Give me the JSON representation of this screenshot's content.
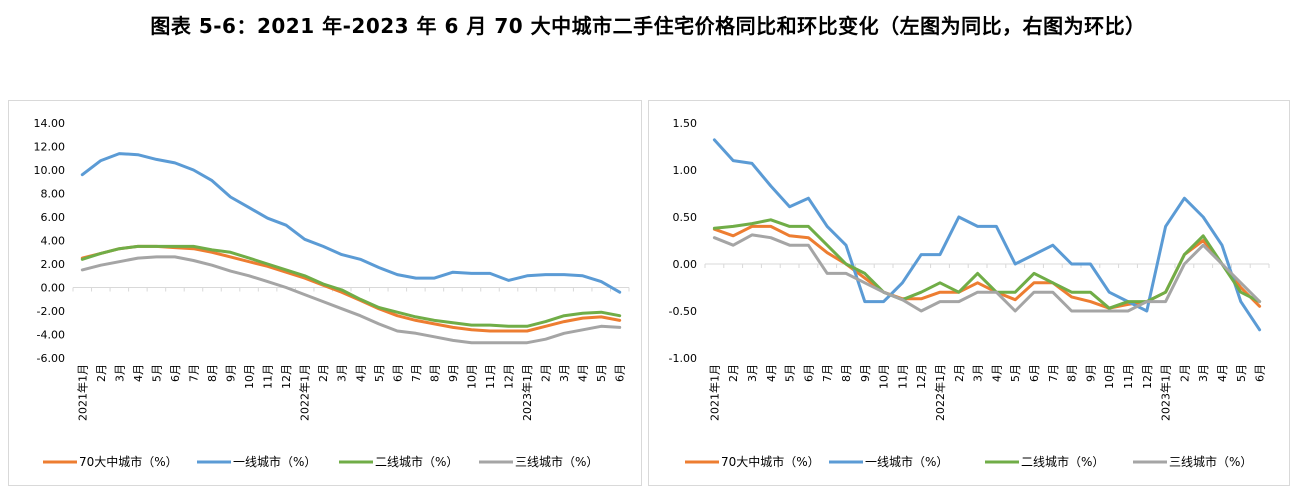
{
  "page_title": "图表 5-6：2021 年-2023 年 6 月 70 大中城市二手住宅价格同比和环比变化（左图为同比，右图为环比）",
  "colors": {
    "70大中城市": "#ED7D31",
    "一线城市": "#5B9BD5",
    "二线城市": "#70AD47",
    "三线城市": "#A5A5A5",
    "grid": "#d9d9d9"
  },
  "chart_data": [
    {
      "type": "line",
      "title": "",
      "categories": [
        "2021年1月",
        "2月",
        "3月",
        "4月",
        "5月",
        "6月",
        "7月",
        "8月",
        "9月",
        "10月",
        "11月",
        "12月",
        "2022年1月",
        "2月",
        "3月",
        "4月",
        "5月",
        "6月",
        "7月",
        "8月",
        "9月",
        "10月",
        "11月",
        "12月",
        "2023年1月",
        "2月",
        "3月",
        "4月",
        "5月",
        "6月"
      ],
      "ylim": [
        -6,
        14
      ],
      "yticks": [
        "14.00",
        "12.00",
        "10.00",
        "8.00",
        "6.00",
        "4.00",
        "2.00",
        "0.00",
        "-2.00",
        "-4.00",
        "-6.00"
      ],
      "legend_position": "bottom",
      "grid": false,
      "series": [
        {
          "name": "70大中城市（%）",
          "values": [
            2.5,
            2.9,
            3.3,
            3.5,
            3.5,
            3.4,
            3.3,
            3.0,
            2.6,
            2.2,
            1.8,
            1.3,
            0.8,
            0.2,
            -0.4,
            -1.1,
            -1.8,
            -2.4,
            -2.8,
            -3.1,
            -3.4,
            -3.6,
            -3.7,
            -3.7,
            -3.7,
            -3.3,
            -2.9,
            -2.6,
            -2.5,
            -2.8
          ]
        },
        {
          "name": "一线城市（%）",
          "values": [
            9.6,
            10.8,
            11.4,
            11.3,
            10.9,
            10.6,
            10.0,
            9.1,
            7.7,
            6.8,
            5.9,
            5.3,
            4.1,
            3.5,
            2.8,
            2.4,
            1.7,
            1.1,
            0.8,
            0.8,
            1.3,
            1.2,
            1.2,
            0.6,
            1.0,
            1.1,
            1.1,
            1.0,
            0.5,
            -0.4
          ]
        },
        {
          "name": "二线城市（%）",
          "values": [
            2.4,
            2.9,
            3.3,
            3.5,
            3.5,
            3.5,
            3.5,
            3.2,
            3.0,
            2.5,
            2.0,
            1.5,
            1.0,
            0.3,
            -0.2,
            -1.0,
            -1.7,
            -2.1,
            -2.5,
            -2.8,
            -3.0,
            -3.2,
            -3.2,
            -3.3,
            -3.3,
            -2.9,
            -2.4,
            -2.2,
            -2.1,
            -2.4
          ]
        },
        {
          "name": "三线城市（%）",
          "values": [
            1.5,
            1.9,
            2.2,
            2.5,
            2.6,
            2.6,
            2.3,
            1.9,
            1.4,
            1.0,
            0.5,
            0.0,
            -0.6,
            -1.2,
            -1.8,
            -2.4,
            -3.1,
            -3.7,
            -3.9,
            -4.2,
            -4.5,
            -4.7,
            -4.7,
            -4.7,
            -4.7,
            -4.4,
            -3.9,
            -3.6,
            -3.3,
            -3.4
          ]
        }
      ]
    },
    {
      "type": "line",
      "title": "",
      "categories": [
        "2021年1月",
        "2月",
        "3月",
        "4月",
        "5月",
        "6月",
        "7月",
        "8月",
        "9月",
        "10月",
        "11月",
        "12月",
        "2022年1月",
        "2月",
        "3月",
        "4月",
        "5月",
        "6月",
        "7月",
        "8月",
        "9月",
        "10月",
        "11月",
        "12月",
        "2023年1月",
        "2月",
        "3月",
        "4月",
        "5月",
        "6月"
      ],
      "ylim": [
        -1,
        1.5
      ],
      "yticks": [
        "1.50",
        "1.00",
        "0.50",
        "0.00",
        "-0.50",
        "-1.00"
      ],
      "legend_position": "bottom",
      "grid": false,
      "series": [
        {
          "name": "70大中城市（%）",
          "values": [
            0.37,
            0.3,
            0.4,
            0.4,
            0.3,
            0.28,
            0.12,
            0.0,
            -0.15,
            -0.3,
            -0.37,
            -0.37,
            -0.3,
            -0.3,
            -0.2,
            -0.3,
            -0.38,
            -0.2,
            -0.2,
            -0.35,
            -0.4,
            -0.47,
            -0.43,
            -0.4,
            -0.3,
            0.1,
            0.25,
            0.0,
            -0.25,
            -0.45
          ]
        },
        {
          "name": "一线城市（%）",
          "values": [
            1.32,
            1.1,
            1.07,
            0.83,
            0.61,
            0.7,
            0.4,
            0.2,
            -0.4,
            -0.4,
            -0.2,
            0.1,
            0.1,
            0.5,
            0.4,
            0.4,
            0.0,
            0.1,
            0.2,
            0.0,
            0.0,
            -0.3,
            -0.4,
            -0.5,
            0.4,
            0.7,
            0.5,
            0.2,
            -0.4,
            -0.7
          ]
        },
        {
          "name": "二线城市（%）",
          "values": [
            0.38,
            0.4,
            0.43,
            0.47,
            0.4,
            0.4,
            0.2,
            0.0,
            -0.1,
            -0.3,
            -0.38,
            -0.3,
            -0.2,
            -0.3,
            -0.1,
            -0.3,
            -0.3,
            -0.1,
            -0.2,
            -0.3,
            -0.3,
            -0.47,
            -0.4,
            -0.4,
            -0.3,
            0.1,
            0.3,
            0.0,
            -0.3,
            -0.4
          ]
        },
        {
          "name": "三线城市（%）",
          "values": [
            0.28,
            0.2,
            0.31,
            0.28,
            0.2,
            0.2,
            -0.1,
            -0.1,
            -0.2,
            -0.3,
            -0.38,
            -0.5,
            -0.4,
            -0.4,
            -0.3,
            -0.3,
            -0.5,
            -0.3,
            -0.3,
            -0.5,
            -0.5,
            -0.5,
            -0.5,
            -0.4,
            -0.4,
            0.0,
            0.2,
            0.0,
            -0.2,
            -0.4
          ]
        }
      ]
    }
  ]
}
